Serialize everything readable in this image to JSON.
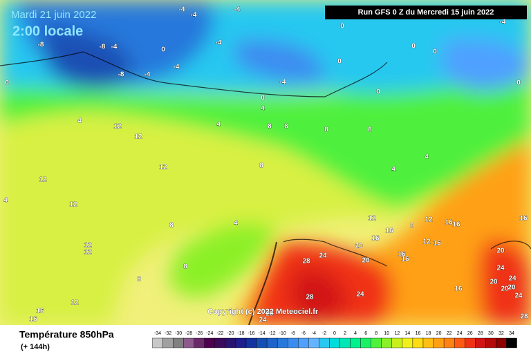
{
  "header": {
    "date": "Mardi 21 juin 2022",
    "time": "2:00 locale",
    "run": "Run GFS 0 Z du Mercredi 15 juin 2022"
  },
  "copyright": "Copyright (c) 2022 Meteociel.fr",
  "footer": {
    "title": "Température 850hPa",
    "lead": "(+ 144h)"
  },
  "contour_labels": [
    -4,
    -4,
    -4,
    -8,
    -8,
    -4,
    0,
    -4,
    -4,
    -8,
    -4,
    -4,
    0,
    0,
    0,
    0,
    0,
    -4,
    0,
    0,
    0,
    4,
    4,
    12,
    12,
    4,
    8,
    8,
    8,
    8,
    12,
    8,
    4,
    4,
    12,
    4,
    12,
    8,
    4,
    12,
    16,
    8,
    12,
    16,
    16,
    16,
    16,
    12,
    16,
    20,
    12,
    12,
    28,
    24,
    20,
    16,
    16,
    8,
    8,
    20,
    24,
    20,
    24,
    20,
    20,
    24,
    28,
    16,
    28,
    24,
    12,
    16,
    16,
    20,
    24
  ],
  "color_scale": {
    "values": [
      -34,
      -32,
      -30,
      -28,
      -26,
      -24,
      -22,
      -20,
      -18,
      -16,
      -14,
      -12,
      -10,
      -8,
      -6,
      -4,
      -2,
      0,
      2,
      4,
      6,
      8,
      10,
      12,
      14,
      16,
      18,
      20,
      22,
      24,
      26,
      28,
      30,
      32,
      34
    ],
    "colors": [
      "#c8c8c8",
      "#a0a0a0",
      "#808080",
      "#8c5a8c",
      "#6a2a6a",
      "#500050",
      "#3c0a5a",
      "#28146e",
      "#1e1e8c",
      "#1432a0",
      "#1450b4",
      "#1e64c8",
      "#2878dc",
      "#3c8cf0",
      "#50a0ff",
      "#64b4ff",
      "#28c8f0",
      "#00dcdc",
      "#00e6b4",
      "#00f08c",
      "#1ef064",
      "#50f03c",
      "#8cf028",
      "#c8f01e",
      "#f0f01e",
      "#ffdc14",
      "#ffbe14",
      "#ffa014",
      "#ff8214",
      "#ff5a14",
      "#f03214",
      "#d21414",
      "#b40a0a",
      "#8c0000",
      "#000000"
    ]
  }
}
